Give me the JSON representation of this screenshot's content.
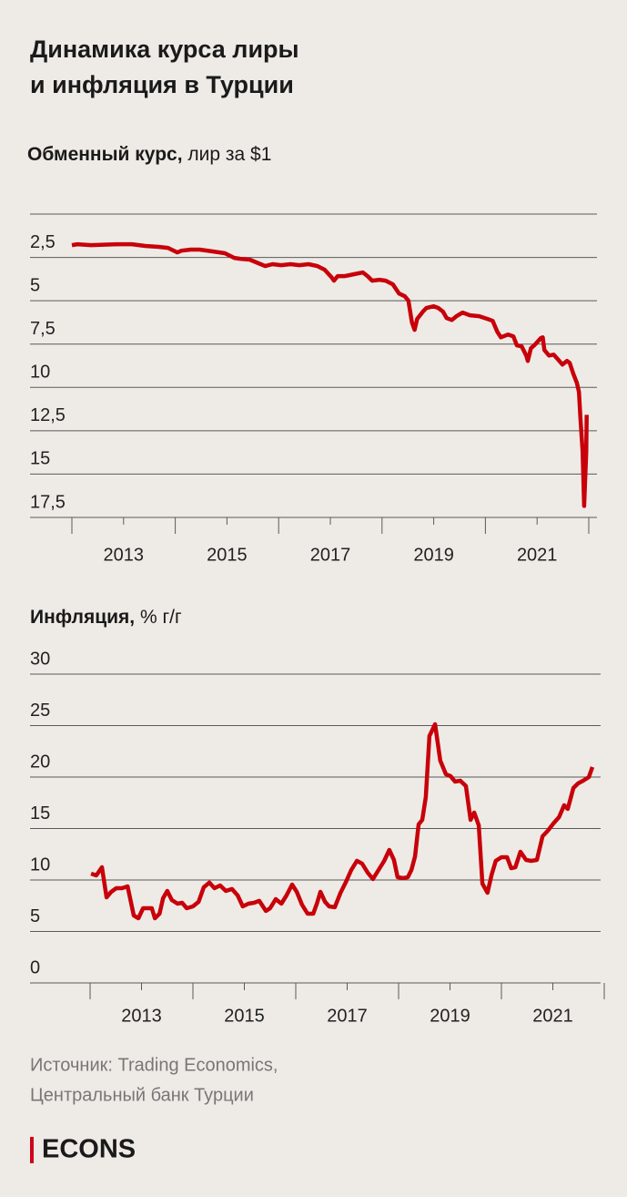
{
  "title": [
    "Динамика курса лиры",
    "и инфляция в Турции"
  ],
  "chart_data": [
    {
      "type": "line",
      "title": "Обменный курс,",
      "unit": "лир за $1",
      "color": "#c8000a",
      "grid": true,
      "y_inverted": true,
      "xlim": [
        2012,
        2022
      ],
      "xticks": [
        2013,
        2015,
        2017,
        2019,
        2021
      ],
      "xminorticks": [
        2012,
        2014,
        2016,
        2018,
        2020,
        2022
      ],
      "ylim": [
        0,
        17.5
      ],
      "yticks": [
        {
          "value": 2.5,
          "label": "2,5"
        },
        5,
        {
          "value": 7.5,
          "label": "7,5"
        },
        10,
        {
          "value": 12.5,
          "label": "12,5"
        },
        15,
        {
          "value": 17.5,
          "label": "17,5"
        }
      ],
      "x": [
        2012.0,
        2012.11,
        2012.37,
        2012.89,
        2013.16,
        2013.42,
        2013.68,
        2013.86,
        2014.04,
        2014.12,
        2014.3,
        2014.47,
        2014.74,
        2014.96,
        2015.14,
        2015.26,
        2015.44,
        2015.61,
        2015.74,
        2015.88,
        2016.05,
        2016.23,
        2016.4,
        2016.58,
        2016.75,
        2016.89,
        2017.02,
        2017.07,
        2017.14,
        2017.28,
        2017.46,
        2017.63,
        2017.72,
        2017.81,
        2017.95,
        2018.07,
        2018.21,
        2018.33,
        2018.44,
        2018.51,
        2018.58,
        2018.63,
        2018.68,
        2018.79,
        2018.86,
        2019.0,
        2019.09,
        2019.18,
        2019.25,
        2019.35,
        2019.44,
        2019.56,
        2019.7,
        2019.88,
        2020.04,
        2020.14,
        2020.23,
        2020.3,
        2020.44,
        2020.54,
        2020.61,
        2020.7,
        2020.79,
        2020.82,
        2020.88,
        2020.96,
        2021.07,
        2021.11,
        2021.14,
        2021.23,
        2021.32,
        2021.4,
        2021.49,
        2021.58,
        2021.63,
        2021.7,
        2021.77,
        2021.81,
        2021.84,
        2021.88,
        2021.91,
        2021.95,
        2021.96
      ],
      "values": [
        1.79,
        1.74,
        1.79,
        1.74,
        1.74,
        1.84,
        1.89,
        1.95,
        2.21,
        2.11,
        2.05,
        2.05,
        2.16,
        2.26,
        2.53,
        2.58,
        2.63,
        2.84,
        3.0,
        2.89,
        2.95,
        2.89,
        2.95,
        2.89,
        3.0,
        3.21,
        3.63,
        3.84,
        3.58,
        3.58,
        3.47,
        3.37,
        3.58,
        3.84,
        3.79,
        3.84,
        4.05,
        4.58,
        4.74,
        5.0,
        6.26,
        6.68,
        6.05,
        5.63,
        5.42,
        5.32,
        5.42,
        5.63,
        6.0,
        6.11,
        5.89,
        5.68,
        5.84,
        5.89,
        6.05,
        6.16,
        6.79,
        7.11,
        6.95,
        7.05,
        7.58,
        7.63,
        8.16,
        8.47,
        7.74,
        7.53,
        7.16,
        7.11,
        7.84,
        8.16,
        8.11,
        8.37,
        8.68,
        8.47,
        8.58,
        9.21,
        9.74,
        10.26,
        11.84,
        13.68,
        16.84,
        13.74,
        11.58
      ]
    },
    {
      "type": "line",
      "title": "Инфляция,",
      "unit": "% г/г",
      "color": "#c8000a",
      "grid": true,
      "xlim": [
        2012,
        2022
      ],
      "xticks": [
        2013,
        2015,
        2017,
        2019,
        2021
      ],
      "xminorticks": [
        2012,
        2014,
        2016,
        2018,
        2020,
        2022
      ],
      "ylim": [
        0,
        30
      ],
      "yticks": [
        0,
        5,
        10,
        15,
        20,
        25,
        30
      ],
      "x": [
        2012.02,
        2012.12,
        2012.23,
        2012.32,
        2012.41,
        2012.51,
        2012.62,
        2012.73,
        2012.85,
        2012.94,
        2013.03,
        2013.12,
        2013.2,
        2013.26,
        2013.35,
        2013.42,
        2013.5,
        2013.59,
        2013.7,
        2013.79,
        2013.88,
        2014.0,
        2014.11,
        2014.21,
        2014.32,
        2014.42,
        2014.53,
        2014.64,
        2014.76,
        2014.87,
        2014.97,
        2015.08,
        2015.19,
        2015.29,
        2015.42,
        2015.5,
        2015.61,
        2015.72,
        2015.82,
        2015.93,
        2016.02,
        2016.12,
        2016.23,
        2016.34,
        2016.41,
        2016.48,
        2016.57,
        2016.65,
        2016.76,
        2016.87,
        2016.97,
        2017.08,
        2017.19,
        2017.29,
        2017.4,
        2017.5,
        2017.61,
        2017.72,
        2017.82,
        2017.91,
        2017.98,
        2018.09,
        2018.18,
        2018.25,
        2018.32,
        2018.39,
        2018.46,
        2018.53,
        2018.6,
        2018.71,
        2018.81,
        2018.92,
        2019.01,
        2019.1,
        2019.2,
        2019.31,
        2019.4,
        2019.47,
        2019.56,
        2019.63,
        2019.73,
        2019.81,
        2019.89,
        2020.0,
        2020.11,
        2020.19,
        2020.27,
        2020.37,
        2020.48,
        2020.58,
        2020.69,
        2020.8,
        2020.9,
        2021.01,
        2021.12,
        2021.22,
        2021.29,
        2021.4,
        2021.49,
        2021.59,
        2021.7,
        2021.77
      ],
      "values": [
        10.62,
        10.44,
        11.24,
        8.32,
        8.85,
        9.2,
        9.2,
        9.38,
        6.55,
        6.28,
        7.26,
        7.26,
        7.26,
        6.28,
        6.73,
        8.23,
        8.94,
        8.05,
        7.7,
        7.79,
        7.26,
        7.43,
        7.88,
        9.29,
        9.74,
        9.2,
        9.47,
        8.94,
        9.12,
        8.5,
        7.43,
        7.7,
        7.79,
        7.97,
        6.99,
        7.26,
        8.14,
        7.7,
        8.5,
        9.56,
        8.85,
        7.61,
        6.73,
        6.73,
        7.7,
        8.85,
        7.88,
        7.43,
        7.35,
        8.76,
        9.74,
        10.97,
        11.86,
        11.59,
        10.71,
        10.09,
        10.97,
        11.86,
        12.92,
        11.95,
        10.27,
        10.18,
        10.27,
        10.97,
        12.3,
        15.4,
        15.84,
        18.05,
        23.98,
        25.13,
        21.59,
        20.27,
        20.09,
        19.56,
        19.65,
        19.12,
        15.84,
        16.55,
        15.31,
        9.65,
        8.76,
        10.53,
        11.86,
        12.21,
        12.21,
        11.15,
        11.24,
        12.74,
        11.95,
        11.86,
        11.95,
        14.25,
        14.78,
        15.49,
        16.11,
        17.26,
        16.9,
        18.94,
        19.38,
        19.65,
        20.0,
        20.97
      ]
    }
  ],
  "source": [
    "Источник: Trading Economics,",
    "Центральный банк Турции"
  ],
  "brand": "ECONS"
}
